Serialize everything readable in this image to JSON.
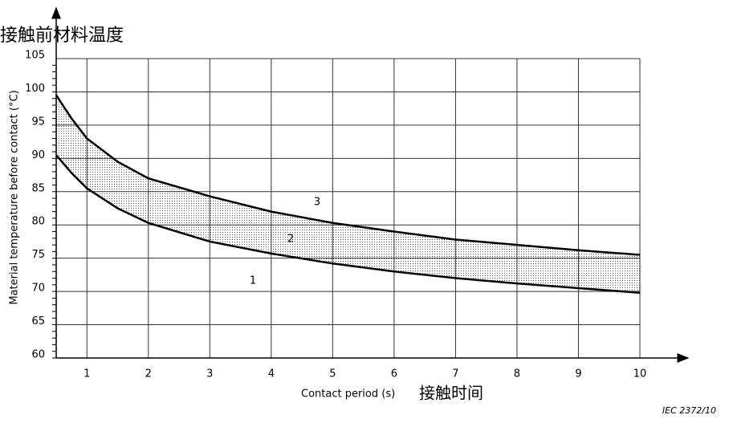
{
  "chart_data": {
    "type": "band",
    "title": "接触前材料温度",
    "y_label": "Material temperature before contact   (°C)",
    "x_label": "Contact period   (s)",
    "x_label_cn": "接触时间",
    "footnote": "IEC   2372/10",
    "band_label": "2",
    "x": [
      0.5,
      0.75,
      1,
      1.5,
      2,
      3,
      4,
      5,
      6,
      7,
      8,
      9,
      10
    ],
    "series": [
      {
        "name": "3",
        "color": "#000000",
        "values": [
          99.5,
          96,
          93,
          89.5,
          87,
          84.3,
          82,
          80.3,
          79,
          77.8,
          77,
          76.2,
          75.5
        ]
      },
      {
        "name": "1",
        "color": "#000000",
        "values": [
          90.5,
          87.8,
          85.5,
          82.5,
          80.3,
          77.5,
          75.7,
          74.2,
          73,
          72,
          71.2,
          70.5,
          69.8
        ]
      }
    ],
    "xlim": [
      0.5,
      10
    ],
    "ylim": [
      60,
      105
    ],
    "xticks": [
      1,
      2,
      3,
      4,
      5,
      6,
      7,
      8,
      9,
      10
    ],
    "yticks": [
      60,
      65,
      70,
      75,
      80,
      85,
      90,
      95,
      100,
      105
    ],
    "grid": true
  }
}
